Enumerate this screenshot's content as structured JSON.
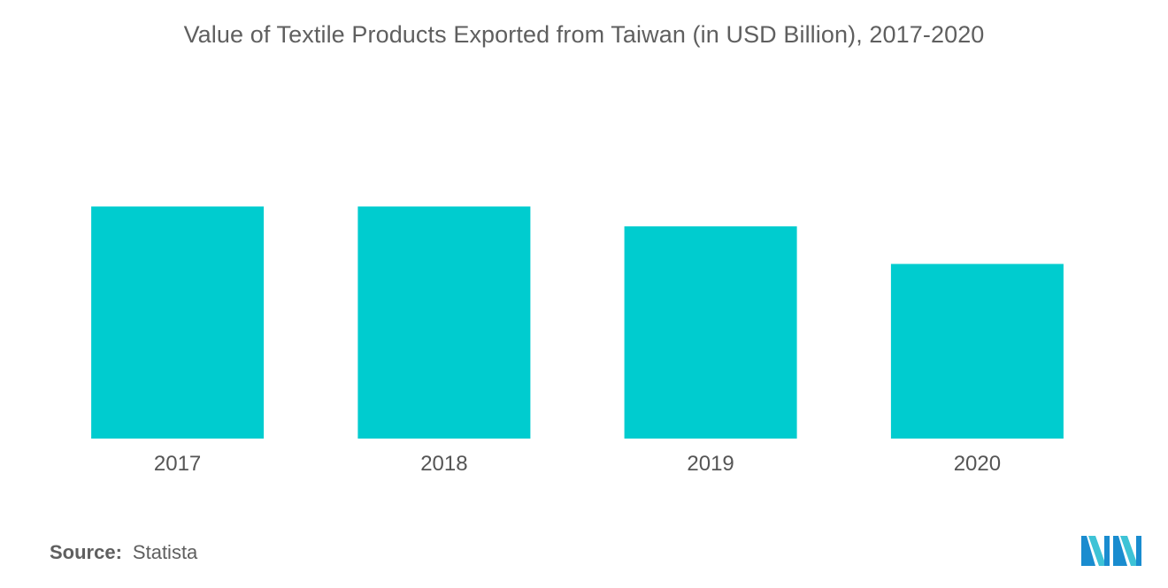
{
  "chart_data": {
    "type": "bar",
    "title": "Value of Textile Products Exported from Taiwan (in USD Billion), 2017-2020",
    "categories": [
      "2017",
      "2018",
      "2019",
      "2020"
    ],
    "values": [
      10.5,
      10.5,
      9.6,
      7.9
    ],
    "xlabel": "",
    "ylabel": "",
    "ylim": [
      0,
      12
    ],
    "grid": false,
    "legend": "none",
    "bar_color": "#00cccf"
  },
  "footer": {
    "source_label": "Source:",
    "source_value": "Statista"
  },
  "logo": {
    "icon": "mordor-intelligence-logo",
    "colors": [
      "#1a8ccf",
      "#3ec3d6"
    ]
  }
}
